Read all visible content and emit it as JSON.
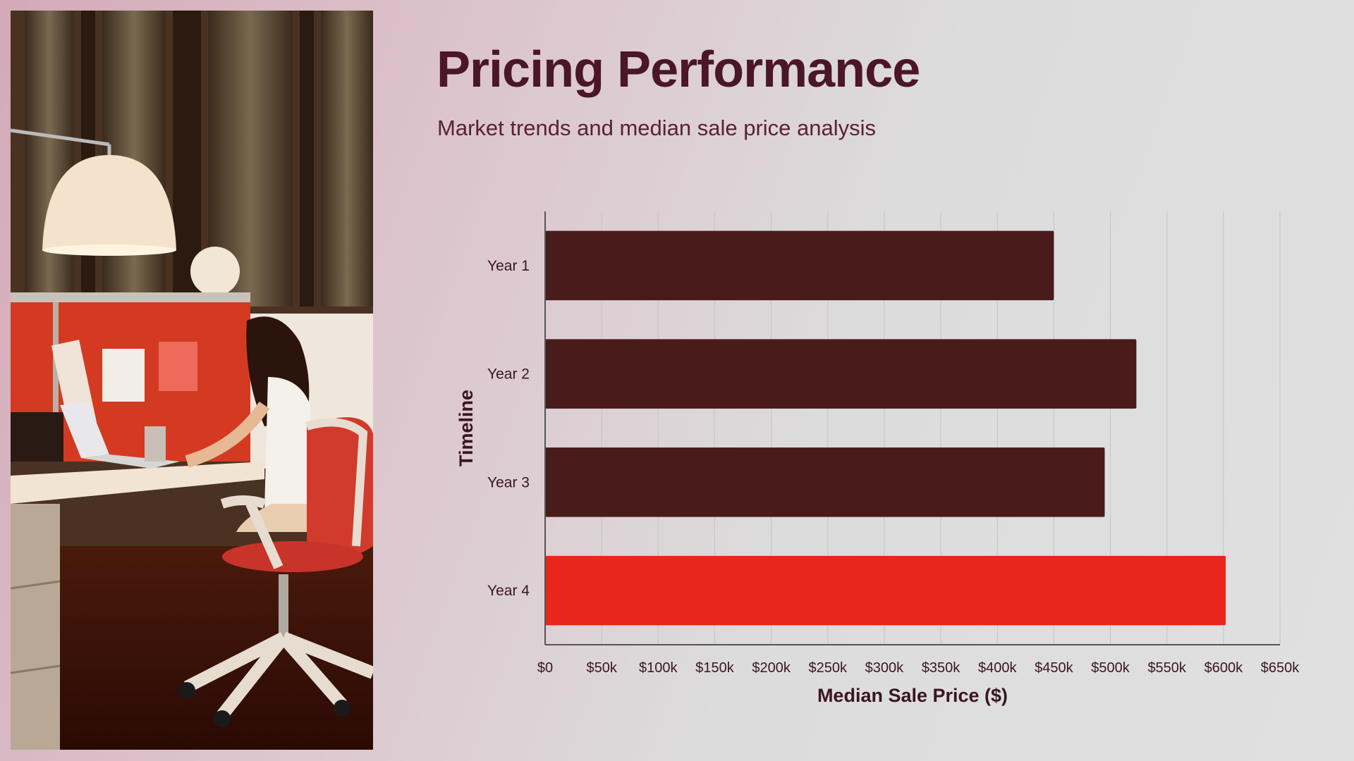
{
  "slide": {
    "title": "Pricing Performance",
    "subtitle": "Market trends and median sale price analysis"
  },
  "photo": {
    "description_icon": "office-worker-photo"
  },
  "colors": {
    "bar_default": "#4a1b1b",
    "bar_highlight": "#e8261b",
    "grid": "#c8c8c8",
    "axis": "#555555",
    "text": "#3a1620"
  },
  "chart_data": {
    "type": "bar",
    "orientation": "horizontal",
    "categories": [
      "Year 1",
      "Year 2",
      "Year 3",
      "Year 4"
    ],
    "values": [
      450000,
      523000,
      495000,
      602000
    ],
    "highlight_index": 3,
    "xlabel": "Median Sale Price ($)",
    "ylabel": "Timeline",
    "xlim": [
      0,
      650000
    ],
    "xticks": [
      0,
      50000,
      100000,
      150000,
      200000,
      250000,
      300000,
      350000,
      400000,
      450000,
      500000,
      550000,
      600000,
      650000
    ],
    "xtick_labels": [
      "$0",
      "$50k",
      "$100k",
      "$150k",
      "$200k",
      "$250k",
      "$300k",
      "$350k",
      "$400k",
      "$450k",
      "$500k",
      "$550k",
      "$600k",
      "$650k"
    ],
    "grid": true,
    "legend": "none"
  }
}
